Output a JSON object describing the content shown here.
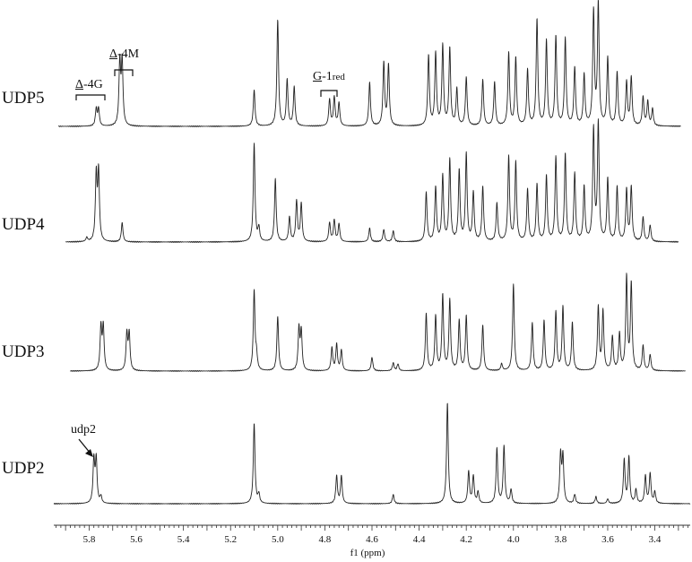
{
  "chart_data": {
    "type": "line",
    "title": "",
    "xlabel": "f1 (ppm)",
    "ylabel": "",
    "xlim": [
      5.95,
      3.25
    ],
    "x_reversed": true,
    "grid": false,
    "tick_labels": [
      "5.8",
      "5.6",
      "5.4",
      "5.2",
      "5.0",
      "4.8",
      "4.6",
      "4.4",
      "4.2",
      "4.0",
      "3.8",
      "3.6",
      "3.4"
    ],
    "series": [
      {
        "name": "UDP5",
        "peaks": [
          {
            "x": 5.77,
            "h": 0.14
          },
          {
            "x": 5.76,
            "h": 0.14
          },
          {
            "x": 5.67,
            "h": 0.52
          },
          {
            "x": 5.66,
            "h": 0.52
          },
          {
            "x": 5.1,
            "h": 0.3
          },
          {
            "x": 5.0,
            "h": 0.88
          },
          {
            "x": 4.96,
            "h": 0.38
          },
          {
            "x": 4.93,
            "h": 0.32
          },
          {
            "x": 4.78,
            "h": 0.22
          },
          {
            "x": 4.76,
            "h": 0.24
          },
          {
            "x": 4.74,
            "h": 0.19
          },
          {
            "x": 4.61,
            "h": 0.36
          },
          {
            "x": 4.55,
            "h": 0.52
          },
          {
            "x": 4.53,
            "h": 0.5
          },
          {
            "x": 4.36,
            "h": 0.58
          },
          {
            "x": 4.33,
            "h": 0.6
          },
          {
            "x": 4.3,
            "h": 0.66
          },
          {
            "x": 4.27,
            "h": 0.64
          },
          {
            "x": 4.24,
            "h": 0.3
          },
          {
            "x": 4.2,
            "h": 0.4
          },
          {
            "x": 4.13,
            "h": 0.38
          },
          {
            "x": 4.08,
            "h": 0.36
          },
          {
            "x": 4.02,
            "h": 0.6
          },
          {
            "x": 3.99,
            "h": 0.56
          },
          {
            "x": 3.94,
            "h": 0.46
          },
          {
            "x": 3.9,
            "h": 0.88
          },
          {
            "x": 3.86,
            "h": 0.7
          },
          {
            "x": 3.82,
            "h": 0.74
          },
          {
            "x": 3.78,
            "h": 0.72
          },
          {
            "x": 3.74,
            "h": 0.48
          },
          {
            "x": 3.7,
            "h": 0.42
          },
          {
            "x": 3.66,
            "h": 0.94
          },
          {
            "x": 3.64,
            "h": 1.0
          },
          {
            "x": 3.6,
            "h": 0.56
          },
          {
            "x": 3.56,
            "h": 0.44
          },
          {
            "x": 3.52,
            "h": 0.36
          },
          {
            "x": 3.5,
            "h": 0.4
          },
          {
            "x": 3.45,
            "h": 0.24
          },
          {
            "x": 3.43,
            "h": 0.2
          },
          {
            "x": 3.41,
            "h": 0.14
          }
        ]
      },
      {
        "name": "UDP4",
        "peaks": [
          {
            "x": 5.81,
            "h": 0.03
          },
          {
            "x": 5.77,
            "h": 0.48
          },
          {
            "x": 5.76,
            "h": 0.5
          },
          {
            "x": 5.66,
            "h": 0.14
          },
          {
            "x": 5.1,
            "h": 0.72
          },
          {
            "x": 5.08,
            "h": 0.1
          },
          {
            "x": 5.01,
            "h": 0.46
          },
          {
            "x": 4.95,
            "h": 0.18
          },
          {
            "x": 4.92,
            "h": 0.3
          },
          {
            "x": 4.9,
            "h": 0.28
          },
          {
            "x": 4.78,
            "h": 0.14
          },
          {
            "x": 4.76,
            "h": 0.16
          },
          {
            "x": 4.74,
            "h": 0.13
          },
          {
            "x": 4.61,
            "h": 0.1
          },
          {
            "x": 4.55,
            "h": 0.09
          },
          {
            "x": 4.51,
            "h": 0.08
          },
          {
            "x": 4.37,
            "h": 0.36
          },
          {
            "x": 4.33,
            "h": 0.4
          },
          {
            "x": 4.3,
            "h": 0.48
          },
          {
            "x": 4.27,
            "h": 0.6
          },
          {
            "x": 4.23,
            "h": 0.52
          },
          {
            "x": 4.2,
            "h": 0.64
          },
          {
            "x": 4.17,
            "h": 0.36
          },
          {
            "x": 4.13,
            "h": 0.4
          },
          {
            "x": 4.07,
            "h": 0.28
          },
          {
            "x": 4.02,
            "h": 0.62
          },
          {
            "x": 3.99,
            "h": 0.58
          },
          {
            "x": 3.94,
            "h": 0.38
          },
          {
            "x": 3.9,
            "h": 0.42
          },
          {
            "x": 3.86,
            "h": 0.48
          },
          {
            "x": 3.82,
            "h": 0.62
          },
          {
            "x": 3.78,
            "h": 0.64
          },
          {
            "x": 3.74,
            "h": 0.5
          },
          {
            "x": 3.7,
            "h": 0.4
          },
          {
            "x": 3.66,
            "h": 0.82
          },
          {
            "x": 3.64,
            "h": 0.86
          },
          {
            "x": 3.6,
            "h": 0.46
          },
          {
            "x": 3.56,
            "h": 0.4
          },
          {
            "x": 3.52,
            "h": 0.38
          },
          {
            "x": 3.5,
            "h": 0.4
          },
          {
            "x": 3.45,
            "h": 0.18
          },
          {
            "x": 3.42,
            "h": 0.12
          }
        ]
      },
      {
        "name": "UDP3",
        "peaks": [
          {
            "x": 5.75,
            "h": 0.38
          },
          {
            "x": 5.74,
            "h": 0.38
          },
          {
            "x": 5.64,
            "h": 0.32
          },
          {
            "x": 5.63,
            "h": 0.32
          },
          {
            "x": 5.1,
            "h": 0.7
          },
          {
            "x": 5.09,
            "h": 0.12
          },
          {
            "x": 5.0,
            "h": 0.48
          },
          {
            "x": 4.91,
            "h": 0.36
          },
          {
            "x": 4.9,
            "h": 0.34
          },
          {
            "x": 4.77,
            "h": 0.2
          },
          {
            "x": 4.75,
            "h": 0.23
          },
          {
            "x": 4.73,
            "h": 0.18
          },
          {
            "x": 4.6,
            "h": 0.12
          },
          {
            "x": 4.51,
            "h": 0.07
          },
          {
            "x": 4.49,
            "h": 0.06
          },
          {
            "x": 4.37,
            "h": 0.5
          },
          {
            "x": 4.33,
            "h": 0.48
          },
          {
            "x": 4.3,
            "h": 0.66
          },
          {
            "x": 4.27,
            "h": 0.62
          },
          {
            "x": 4.23,
            "h": 0.44
          },
          {
            "x": 4.2,
            "h": 0.48
          },
          {
            "x": 4.13,
            "h": 0.4
          },
          {
            "x": 4.05,
            "h": 0.06
          },
          {
            "x": 4.0,
            "h": 0.76
          },
          {
            "x": 3.92,
            "h": 0.42
          },
          {
            "x": 3.87,
            "h": 0.44
          },
          {
            "x": 3.82,
            "h": 0.52
          },
          {
            "x": 3.79,
            "h": 0.56
          },
          {
            "x": 3.75,
            "h": 0.42
          },
          {
            "x": 3.64,
            "h": 0.56
          },
          {
            "x": 3.62,
            "h": 0.52
          },
          {
            "x": 3.58,
            "h": 0.3
          },
          {
            "x": 3.55,
            "h": 0.32
          },
          {
            "x": 3.52,
            "h": 0.82
          },
          {
            "x": 3.5,
            "h": 0.76
          },
          {
            "x": 3.45,
            "h": 0.22
          },
          {
            "x": 3.42,
            "h": 0.14
          }
        ]
      },
      {
        "name": "UDP2",
        "peaks": [
          {
            "x": 5.78,
            "h": 0.38
          },
          {
            "x": 5.77,
            "h": 0.38
          },
          {
            "x": 5.75,
            "h": 0.06
          },
          {
            "x": 5.1,
            "h": 0.7
          },
          {
            "x": 5.08,
            "h": 0.08
          },
          {
            "x": 4.75,
            "h": 0.24
          },
          {
            "x": 4.73,
            "h": 0.24
          },
          {
            "x": 4.51,
            "h": 0.08
          },
          {
            "x": 4.28,
            "h": 0.88
          },
          {
            "x": 4.19,
            "h": 0.28
          },
          {
            "x": 4.17,
            "h": 0.24
          },
          {
            "x": 4.15,
            "h": 0.1
          },
          {
            "x": 4.07,
            "h": 0.48
          },
          {
            "x": 4.04,
            "h": 0.5
          },
          {
            "x": 4.01,
            "h": 0.12
          },
          {
            "x": 3.8,
            "h": 0.42
          },
          {
            "x": 3.79,
            "h": 0.4
          },
          {
            "x": 3.74,
            "h": 0.08
          },
          {
            "x": 3.65,
            "h": 0.06
          },
          {
            "x": 3.6,
            "h": 0.04
          },
          {
            "x": 3.53,
            "h": 0.38
          },
          {
            "x": 3.51,
            "h": 0.4
          },
          {
            "x": 3.48,
            "h": 0.12
          },
          {
            "x": 3.44,
            "h": 0.24
          },
          {
            "x": 3.42,
            "h": 0.26
          },
          {
            "x": 3.4,
            "h": 0.1
          }
        ]
      }
    ],
    "annotations": [
      {
        "text_u": "Δ",
        "text_rest": "-4G",
        "spans_ppm": [
          5.8,
          5.74
        ]
      },
      {
        "text_u": "Δ",
        "text_rest": "-4M",
        "spans_ppm": [
          5.7,
          5.63
        ]
      },
      {
        "text_u": "G",
        "text_rest": "-1",
        "sub": "red",
        "spans_ppm": [
          4.79,
          4.72
        ]
      },
      {
        "text": "udp2",
        "points_to_ppm": 5.78
      }
    ]
  },
  "labels": {
    "udp5": "UDP5",
    "udp4": "UDP4",
    "udp3": "UDP3",
    "udp2": "UDP2"
  },
  "colors": {
    "line": "#222222",
    "axis": "#333333"
  }
}
